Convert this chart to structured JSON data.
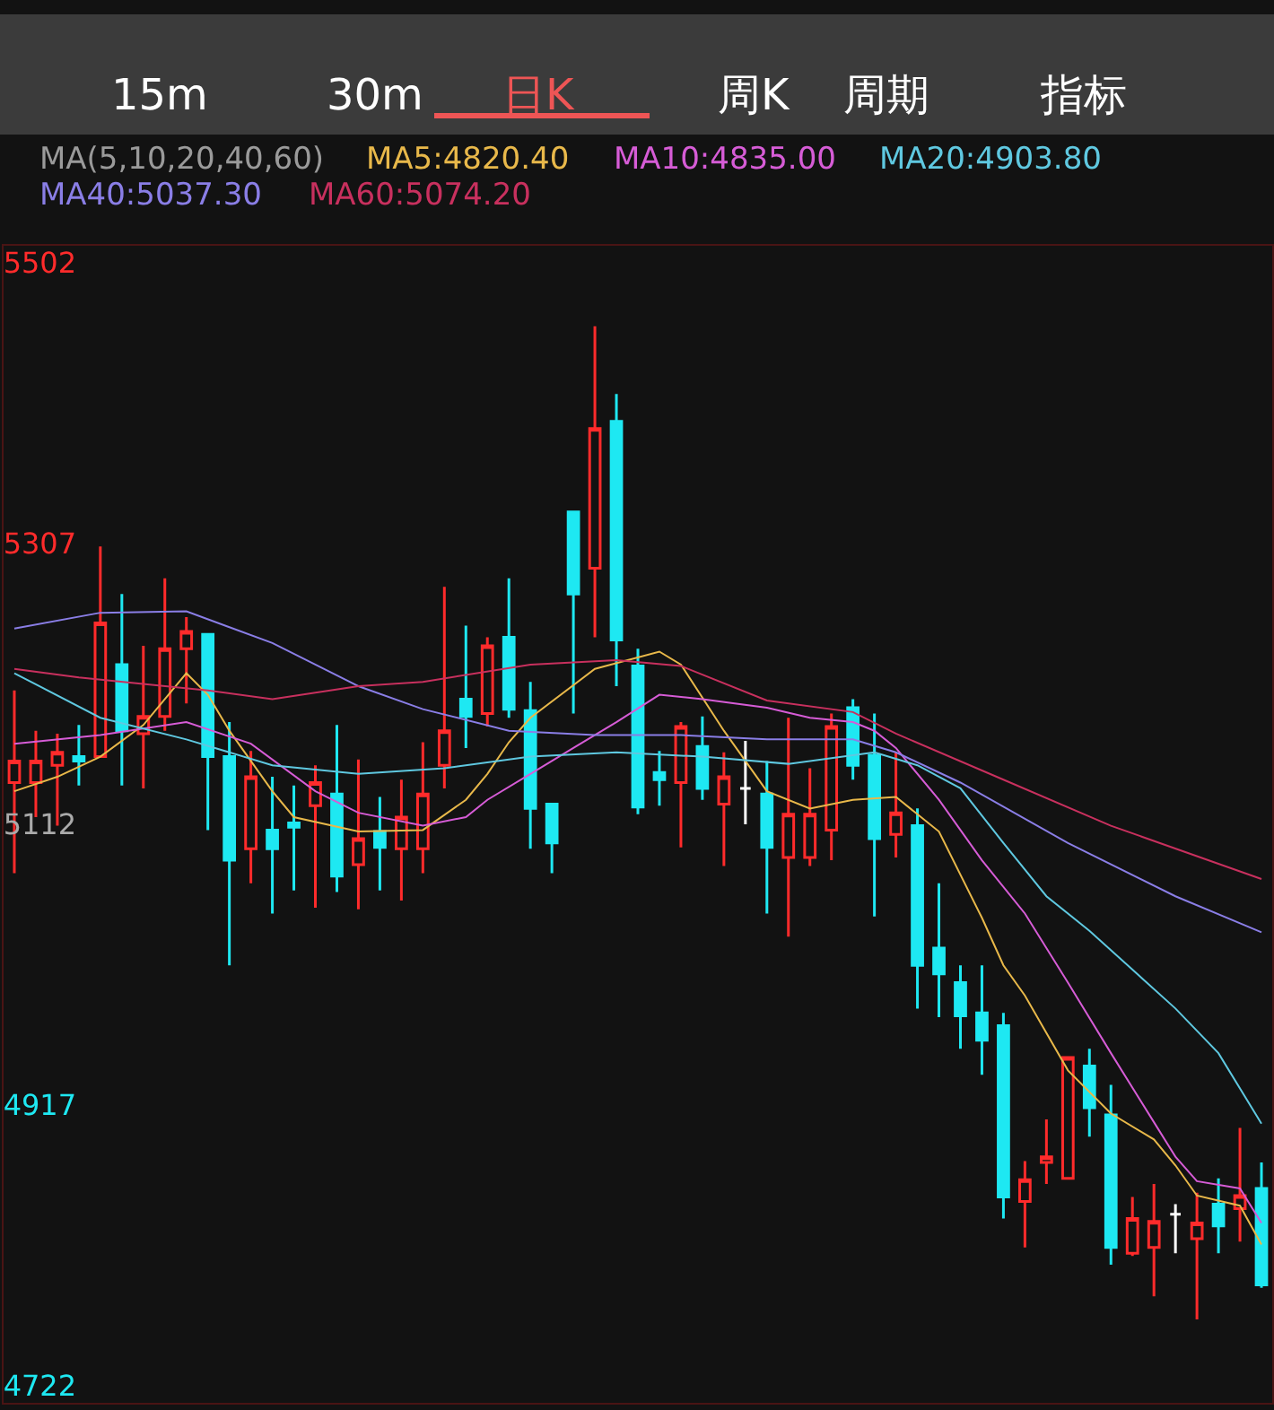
{
  "chart_data": {
    "type": "candlestick",
    "annotations": [
      "15m",
      "30m",
      "日K",
      "周K",
      "周期",
      "指标"
    ],
    "legend_title": "MA(5,10,20,40,60)",
    "categories": [
      null,
      null,
      null,
      null,
      null,
      null,
      null,
      null,
      null,
      null,
      null,
      null,
      null,
      null,
      null,
      null,
      null,
      null,
      null,
      null,
      null,
      null,
      null,
      null,
      null,
      null,
      null,
      null,
      null,
      null,
      null,
      null,
      null,
      null,
      null,
      null,
      null,
      null,
      null,
      null,
      null,
      null,
      null,
      null,
      null,
      null,
      null,
      null,
      null,
      null,
      null,
      null,
      null,
      null,
      null,
      null,
      null,
      null,
      null
    ],
    "colors": [
      "#ff2b2b",
      "#ff2b2b",
      "#ff2b2b",
      "#1ee8f2",
      "#ff2b2b",
      "#1ee8f2",
      "#ff2b2b",
      "#ff2b2b",
      "#ff2b2b",
      "#1ee8f2",
      "#1ee8f2",
      "#ff2b2b",
      "#1ee8f2",
      "#1ee8f2",
      "#ff2b2b",
      "#1ee8f2",
      "#ff2b2b",
      "#1ee8f2",
      "#ff2b2b",
      "#ff2b2b",
      "#ff2b2b",
      "#1ee8f2",
      "#ff2b2b",
      "#1ee8f2",
      "#1ee8f2",
      "#1ee8f2",
      "#1ee8f2",
      "#ff2b2b",
      "#1ee8f2",
      "#1ee8f2",
      "#1ee8f2",
      "#ff2b2b",
      "#1ee8f2",
      "#ff2b2b",
      "#ffffff",
      "#1ee8f2",
      "#ff2b2b",
      "#ff2b2b",
      "#ff2b2b",
      "#1ee8f2",
      "#1ee8f2",
      "#ff2b2b",
      "#1ee8f2",
      "#1ee8f2",
      "#1ee8f2",
      "#1ee8f2",
      "#1ee8f2",
      "#ff2b2b",
      "#ff2b2b",
      "#ff2b2b",
      "#1ee8f2",
      "#1ee8f2",
      "#ff2b2b",
      "#ff2b2b",
      "#ffffff",
      "#ff2b2b",
      "#1ee8f2",
      "#ff2b2b",
      "#1ee8f2"
    ],
    "ohlc": [
      [
        5141,
        5205,
        5078,
        5156
      ],
      [
        5141,
        5177,
        5117,
        5156
      ],
      [
        5153,
        5175,
        5111,
        5162
      ],
      [
        5159,
        5181,
        5139,
        5156
      ],
      [
        5159,
        5305,
        5159,
        5252
      ],
      [
        5223,
        5272,
        5139,
        5177
      ],
      [
        5175,
        5236,
        5137,
        5187
      ],
      [
        5187,
        5283,
        5177,
        5234
      ],
      [
        5234,
        5256,
        5196,
        5246
      ],
      [
        5244,
        5244,
        5108,
        5159
      ],
      [
        5159,
        5183,
        5014,
        5087
      ],
      [
        5095,
        5163,
        5071,
        5145
      ],
      [
        5108,
        5145,
        5050,
        5095
      ],
      [
        5113,
        5139,
        5066,
        5110
      ],
      [
        5125,
        5153,
        5054,
        5141
      ],
      [
        5133,
        5181,
        5065,
        5076
      ],
      [
        5084,
        5157,
        5053,
        5102
      ],
      [
        5107,
        5131,
        5066,
        5096
      ],
      [
        5095,
        5143,
        5059,
        5117
      ],
      [
        5095,
        5169,
        5078,
        5133
      ],
      [
        5153,
        5277,
        5137,
        5177
      ],
      [
        5199,
        5250,
        5165,
        5187
      ],
      [
        5189,
        5242,
        5180,
        5236
      ],
      [
        5242,
        5283,
        5186,
        5192
      ],
      [
        5191,
        5211,
        5095,
        5123
      ],
      [
        5126,
        5126,
        5078,
        5099
      ],
      [
        5329,
        5329,
        5189,
        5272
      ],
      [
        5290,
        5458,
        5242,
        5387
      ],
      [
        5392,
        5411,
        5208,
        5240
      ],
      [
        5222,
        5234,
        5119,
        5124
      ],
      [
        5148,
        5163,
        5125,
        5143
      ],
      [
        5141,
        5183,
        5096,
        5180
      ],
      [
        5166,
        5187,
        5129,
        5137
      ],
      [
        5126,
        5162,
        5083,
        5145
      ],
      [
        5137,
        5170,
        5112,
        5137
      ],
      [
        5133,
        5156,
        5050,
        5096
      ],
      [
        5089,
        5186,
        5034,
        5119
      ],
      [
        5089,
        5151,
        5083,
        5119
      ],
      [
        5108,
        5189,
        5087,
        5180
      ],
      [
        5193,
        5199,
        5143,
        5153
      ],
      [
        5160,
        5189,
        5048,
        5102
      ],
      [
        5105,
        5162,
        5089,
        5120
      ],
      [
        5111,
        5123,
        4984,
        5014
      ],
      [
        5026,
        5071,
        4978,
        5008
      ],
      [
        5002,
        5014,
        4956,
        4979
      ],
      [
        4981,
        5014,
        4938,
        4962
      ],
      [
        4972,
        4981,
        4838,
        4853
      ],
      [
        4850,
        4878,
        4818,
        4865
      ],
      [
        4877,
        4907,
        4862,
        4881
      ],
      [
        4866,
        4950,
        4866,
        4950
      ],
      [
        4944,
        4956,
        4895,
        4915
      ],
      [
        4910,
        4931,
        4806,
        4818
      ],
      [
        4814,
        4853,
        4812,
        4838
      ],
      [
        4818,
        4862,
        4784,
        4836
      ],
      [
        4841,
        4848,
        4814,
        4841
      ],
      [
        4824,
        4856,
        4768,
        4835
      ],
      [
        4848,
        4866,
        4814,
        4833
      ],
      [
        4845,
        4901,
        4822,
        4854
      ],
      [
        4859,
        4877,
        4790,
        4792
      ]
    ],
    "series": [
      {
        "type": "line",
        "name": "MA5:4820.40",
        "color": "#e8b84a",
        "values": [
          5135,
          null,
          5145,
          null,
          5159,
          null,
          5181,
          null,
          5217,
          5202,
          5177,
          null,
          5135,
          5117,
          null,
          null,
          5107,
          null,
          null,
          5108,
          null,
          5129,
          5147,
          5169,
          5186,
          null,
          null,
          5220,
          null,
          null,
          5232,
          5223,
          null,
          5177,
          null,
          5135,
          null,
          5123,
          null,
          5129,
          null,
          5131,
          null,
          5107,
          null,
          5047,
          5014,
          4993,
          null,
          4941,
          null,
          4911,
          null,
          4893,
          4875,
          4854,
          null,
          4847,
          4820
        ]
      },
      {
        "type": "line",
        "name": "MA10:4835.00",
        "color": "#d65cd6",
        "values": [
          5168,
          null,
          null,
          null,
          5174,
          null,
          null,
          null,
          5183,
          null,
          null,
          5168,
          null,
          null,
          5135,
          null,
          5120,
          null,
          null,
          5111,
          null,
          5117,
          5129,
          null,
          5147,
          null,
          5165,
          null,
          5183,
          null,
          5202,
          null,
          5199,
          null,
          null,
          5193,
          null,
          5186,
          null,
          5183,
          5177,
          5165,
          null,
          5129,
          null,
          5087,
          null,
          5050,
          null,
          5002,
          null,
          4953,
          null,
          4905,
          4881,
          4864,
          null,
          4859,
          4835
        ]
      },
      {
        "type": "line",
        "name": "MA20:4903.80",
        "color": "#5fc8e0",
        "values": [
          5217,
          null,
          null,
          null,
          5186,
          null,
          null,
          null,
          5171,
          null,
          null,
          null,
          5153,
          null,
          null,
          null,
          5147,
          null,
          null,
          null,
          5151,
          null,
          null,
          null,
          5159,
          null,
          null,
          null,
          5162,
          null,
          null,
          null,
          5159,
          null,
          null,
          null,
          5154,
          null,
          null,
          null,
          5162,
          null,
          5153,
          null,
          5137,
          null,
          5099,
          null,
          5062,
          null,
          5038,
          null,
          5011,
          null,
          4984,
          null,
          4953,
          null,
          4904
        ]
      },
      {
        "type": "line",
        "name": "MA40:5037.30",
        "color": "#8a7ee6",
        "values": [
          5248,
          null,
          null,
          null,
          5259,
          null,
          null,
          null,
          5260,
          null,
          null,
          null,
          5238,
          null,
          null,
          null,
          5208,
          null,
          null,
          5192,
          null,
          null,
          null,
          5177,
          null,
          null,
          null,
          5174,
          null,
          null,
          null,
          5174,
          null,
          null,
          null,
          5171,
          null,
          null,
          null,
          5171,
          null,
          5162,
          null,
          null,
          5141,
          null,
          null,
          null,
          null,
          5099,
          null,
          null,
          null,
          null,
          5062,
          null,
          null,
          null,
          5037
        ]
      },
      {
        "type": "line",
        "name": "MA60:5074.20",
        "color": "#c8305e",
        "values": [
          5220,
          null,
          null,
          5214,
          null,
          null,
          null,
          null,
          null,
          5205,
          null,
          null,
          5199,
          null,
          null,
          null,
          5208,
          null,
          null,
          5211,
          null,
          null,
          null,
          null,
          5223,
          null,
          null,
          null,
          5226,
          null,
          null,
          5222,
          null,
          null,
          null,
          5198,
          null,
          null,
          null,
          5190,
          null,
          5175,
          null,
          null,
          null,
          null,
          5143,
          null,
          null,
          null,
          null,
          5111,
          null,
          null,
          null,
          null,
          null,
          null,
          5074
        ]
      }
    ],
    "ylim": [
      4710,
      5514
    ],
    "yticks": [
      5502,
      5307,
      5112,
      4917,
      4722
    ],
    "tick_labels": "y"
  }
}
